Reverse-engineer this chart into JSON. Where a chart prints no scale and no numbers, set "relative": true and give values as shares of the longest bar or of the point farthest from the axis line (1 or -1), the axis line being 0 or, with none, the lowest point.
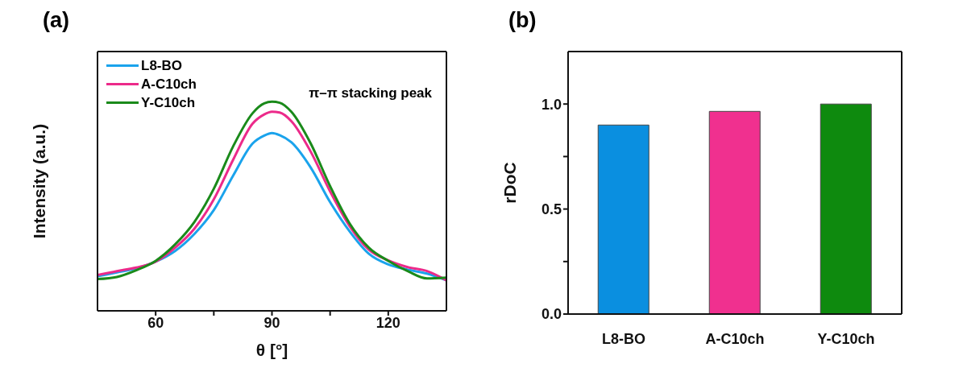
{
  "chart_data": [
    {
      "type": "line",
      "title": "(a)",
      "xlabel": "θ [°]",
      "ylabel": "Intensity (a.u.)",
      "relative": true,
      "legend": "top left",
      "annotations": [
        "π–π stacking peak"
      ],
      "xlim": [
        45,
        135
      ],
      "xticks": [
        60,
        {
          "value": 75,
          "label": null
        },
        90,
        {
          "value": 105,
          "label": null
        },
        120
      ],
      "x": [
        45,
        50,
        55,
        60,
        65,
        70,
        75,
        80,
        85,
        88,
        90,
        92,
        95,
        100,
        105,
        110,
        115,
        120,
        125,
        130,
        135
      ],
      "series": [
        {
          "name": "L8-BO",
          "color": "#1aa3ec",
          "values": [
            0.165,
            0.184,
            0.203,
            0.235,
            0.286,
            0.368,
            0.482,
            0.647,
            0.8,
            0.838,
            0.85,
            0.84,
            0.806,
            0.685,
            0.52,
            0.381,
            0.273,
            0.222,
            0.197,
            0.178,
            0.146
          ]
        },
        {
          "name": "A-C10ch",
          "color": "#ec2a8a",
          "values": [
            0.171,
            0.19,
            0.207,
            0.235,
            0.302,
            0.393,
            0.533,
            0.723,
            0.895,
            0.939,
            0.952,
            0.948,
            0.907,
            0.761,
            0.571,
            0.406,
            0.292,
            0.241,
            0.209,
            0.19,
            0.146
          ]
        },
        {
          "name": "Y-C10ch",
          "color": "#1a8a1a",
          "values": [
            0.152,
            0.162,
            0.194,
            0.239,
            0.317,
            0.425,
            0.584,
            0.787,
            0.945,
            0.992,
            1.0,
            0.995,
            0.952,
            0.8,
            0.596,
            0.419,
            0.302,
            0.239,
            0.19,
            0.155,
            0.159
          ]
        }
      ]
    },
    {
      "type": "bar",
      "title": "(b)",
      "ylabel": "rDoC",
      "categories": [
        "L8-BO",
        "A-C10ch",
        "Y-C10ch"
      ],
      "values": [
        0.9,
        0.965,
        1.0
      ],
      "colors": [
        "#0a8fe0",
        "#f0308f",
        "#0e8a0e"
      ],
      "ylim": [
        0,
        1.25
      ],
      "yticks": [
        {
          "value": 0,
          "label": "0.0"
        },
        {
          "value": 0.25,
          "label": null
        },
        {
          "value": 0.5,
          "label": "0.5"
        },
        {
          "value": 0.75,
          "label": null
        },
        {
          "value": 1,
          "label": "1.0"
        }
      ]
    }
  ]
}
